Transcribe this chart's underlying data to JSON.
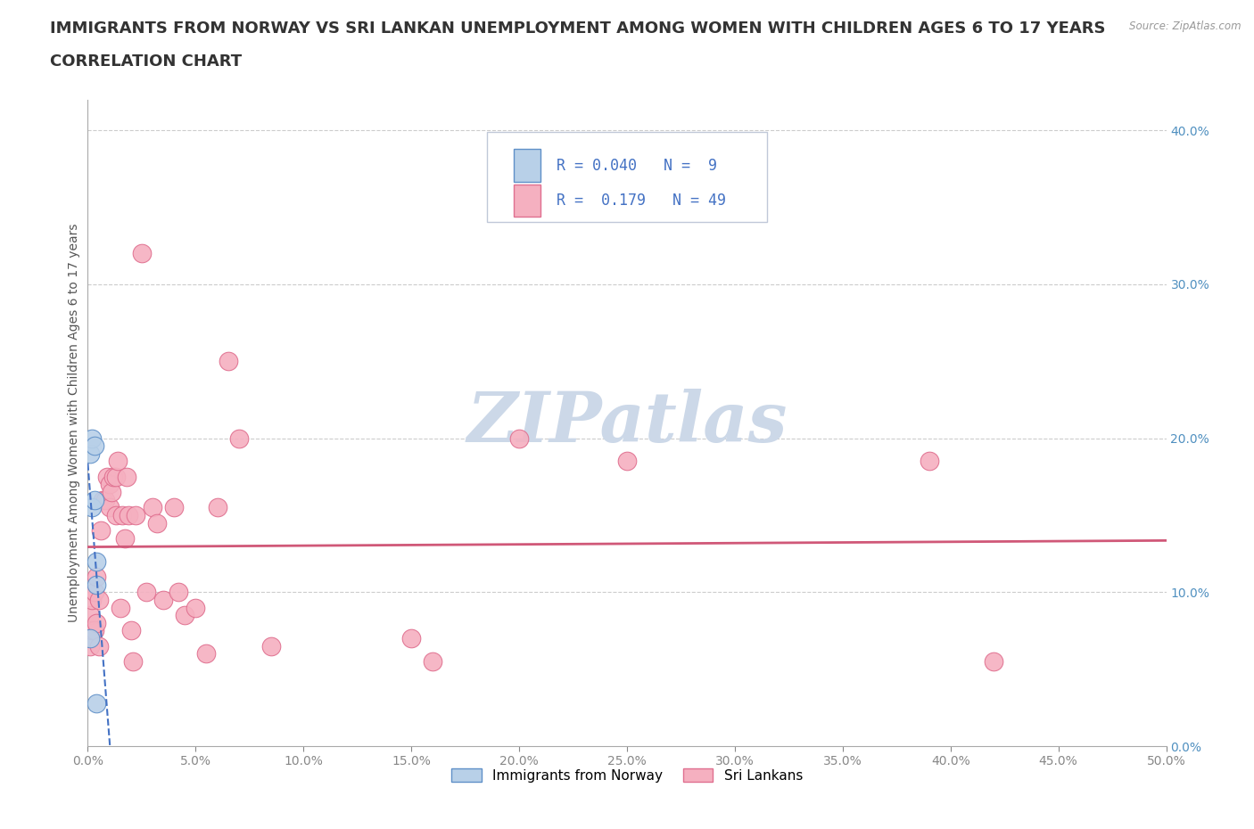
{
  "title_line1": "IMMIGRANTS FROM NORWAY VS SRI LANKAN UNEMPLOYMENT AMONG WOMEN WITH CHILDREN AGES 6 TO 17 YEARS",
  "title_line2": "CORRELATION CHART",
  "source_text": "Source: ZipAtlas.com",
  "ylabel": "Unemployment Among Women with Children Ages 6 to 17 years",
  "xlim": [
    0.0,
    0.5
  ],
  "ylim": [
    0.0,
    0.42
  ],
  "xticks": [
    0.0,
    0.05,
    0.1,
    0.15,
    0.2,
    0.25,
    0.3,
    0.35,
    0.4,
    0.45,
    0.5
  ],
  "yticks": [
    0.0,
    0.1,
    0.2,
    0.3,
    0.4
  ],
  "norway_R": 0.04,
  "norway_N": 9,
  "srilanka_R": 0.179,
  "srilanka_N": 49,
  "norway_color": "#b8d0e8",
  "norway_edge_color": "#6090c8",
  "norway_line_color": "#4472c4",
  "srilanka_color": "#f5b0c0",
  "srilanka_edge_color": "#e07090",
  "srilanka_line_color": "#d05878",
  "legend_text_color": "#4472c4",
  "watermark_color": "#ccd8e8",
  "background_color": "#ffffff",
  "norway_x": [
    0.001,
    0.001,
    0.002,
    0.002,
    0.003,
    0.003,
    0.004,
    0.004,
    0.004
  ],
  "norway_y": [
    0.07,
    0.19,
    0.2,
    0.155,
    0.16,
    0.195,
    0.12,
    0.105,
    0.028
  ],
  "srilanka_x": [
    0.001,
    0.001,
    0.002,
    0.002,
    0.003,
    0.003,
    0.004,
    0.004,
    0.005,
    0.005,
    0.006,
    0.007,
    0.008,
    0.009,
    0.01,
    0.01,
    0.011,
    0.012,
    0.013,
    0.013,
    0.014,
    0.015,
    0.016,
    0.017,
    0.018,
    0.019,
    0.02,
    0.021,
    0.022,
    0.025,
    0.027,
    0.03,
    0.032,
    0.035,
    0.04,
    0.042,
    0.045,
    0.05,
    0.055,
    0.06,
    0.065,
    0.07,
    0.085,
    0.15,
    0.16,
    0.2,
    0.25,
    0.39,
    0.42
  ],
  "srilanka_y": [
    0.085,
    0.065,
    0.095,
    0.075,
    0.1,
    0.075,
    0.11,
    0.08,
    0.095,
    0.065,
    0.14,
    0.16,
    0.16,
    0.175,
    0.17,
    0.155,
    0.165,
    0.175,
    0.15,
    0.175,
    0.185,
    0.09,
    0.15,
    0.135,
    0.175,
    0.15,
    0.075,
    0.055,
    0.15,
    0.32,
    0.1,
    0.155,
    0.145,
    0.095,
    0.155,
    0.1,
    0.085,
    0.09,
    0.06,
    0.155,
    0.25,
    0.2,
    0.065,
    0.07,
    0.055,
    0.2,
    0.185,
    0.185,
    0.055
  ],
  "grid_color": "#cccccc",
  "title_fontsize": 13,
  "axis_label_fontsize": 10,
  "tick_fontsize": 10,
  "legend_fontsize": 12
}
